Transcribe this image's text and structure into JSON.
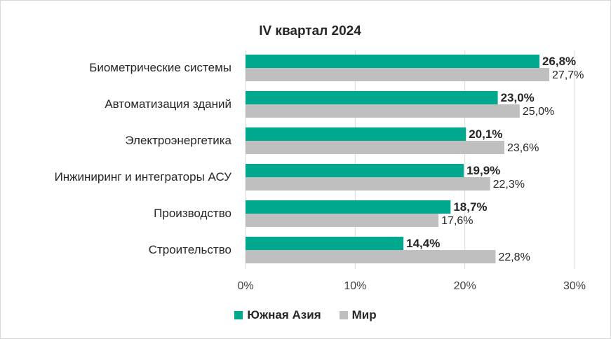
{
  "chart_data": {
    "type": "bar",
    "orientation": "horizontal",
    "title": "IV квартал 2024",
    "categories": [
      "Биометрические системы",
      "Автоматизация зданий",
      "Электроэнергетика",
      "Инжиниринг и интеграторы АСУ",
      "Производство",
      "Строительство"
    ],
    "series": [
      {
        "name": "Южная Азия",
        "color": "#00a88e",
        "values": [
          26.8,
          23.0,
          20.1,
          19.9,
          18.7,
          14.4
        ],
        "labels": [
          "26,8%",
          "23,0%",
          "20,1%",
          "19,9%",
          "18,7%",
          "14,4%"
        ]
      },
      {
        "name": "Мир",
        "color": "#bfbfbf",
        "values": [
          27.7,
          25.0,
          23.6,
          22.3,
          17.6,
          22.8
        ],
        "labels": [
          "27,7%",
          "25,0%",
          "23,6%",
          "22,3%",
          "17,6%",
          "22,8%"
        ]
      }
    ],
    "xlim": [
      0,
      30
    ],
    "xticks": [
      "0%",
      "10%",
      "20%",
      "30%"
    ],
    "grid": true,
    "legend_position": "bottom"
  }
}
